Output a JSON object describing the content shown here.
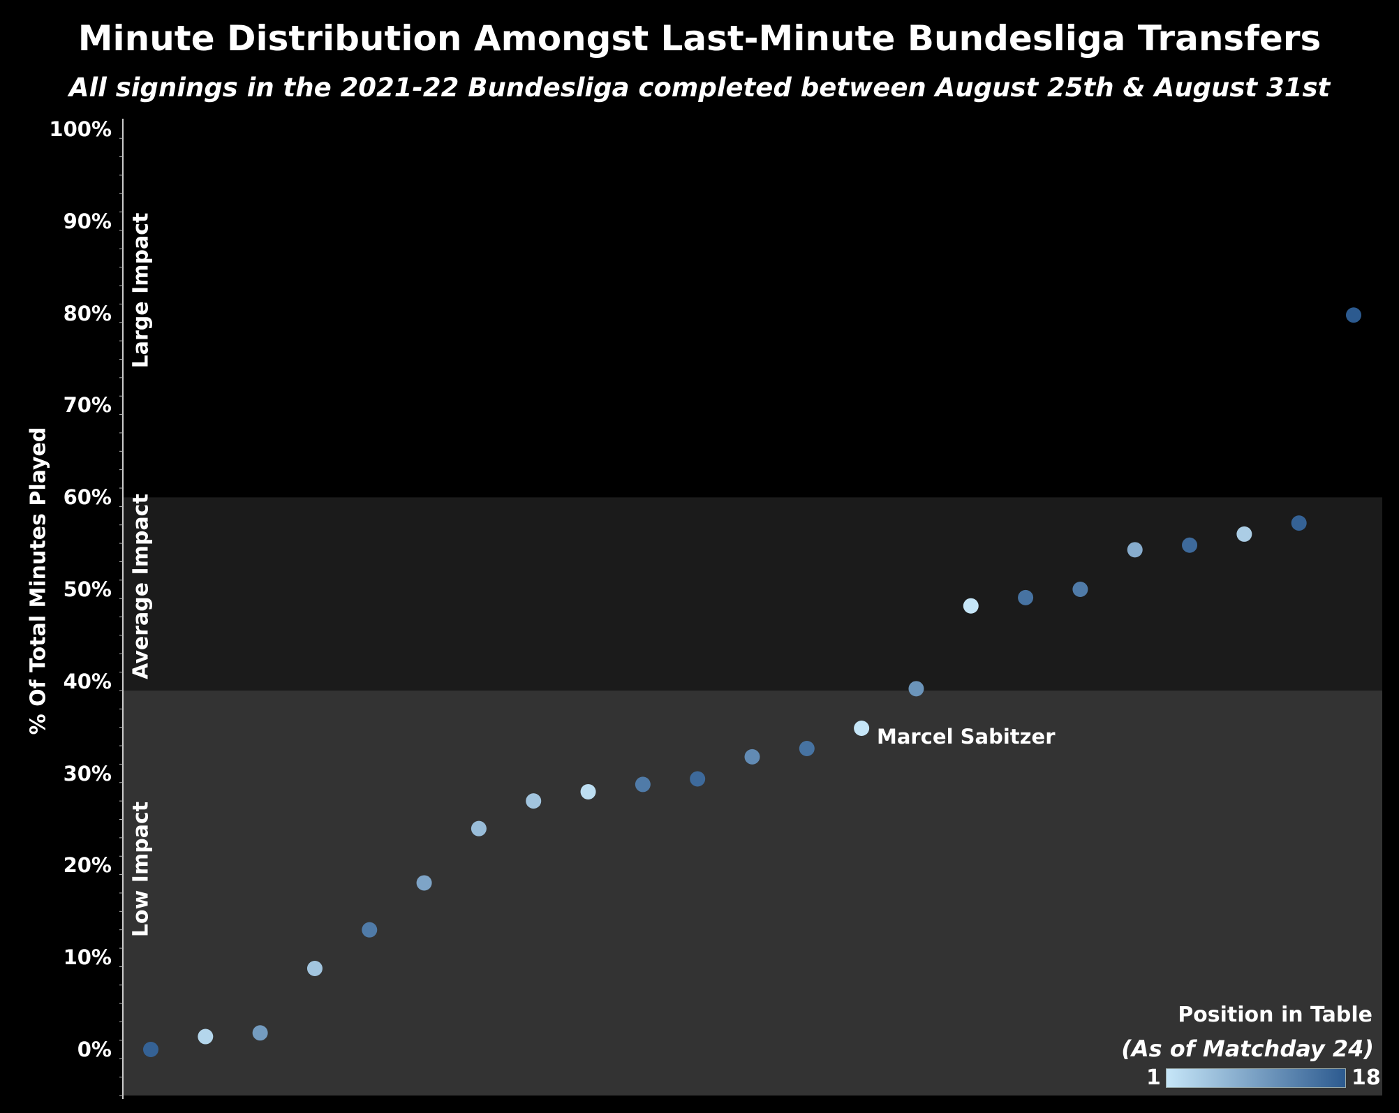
{
  "title": "Minute Distribution Amongst Last-Minute Bundesliga Transfers",
  "subtitle": "All signings in the 2021-22 Bundesliga completed between August 25th & August 31st",
  "chart_data": {
    "type": "scatter",
    "ylabel": "% Of Total Minutes Played",
    "ylim": [
      -5,
      100
    ],
    "y_ticks": [
      "0%",
      "10%",
      "20%",
      "30%",
      "40%",
      "50%",
      "60%",
      "70%",
      "80%",
      "90%",
      "100%"
    ],
    "bands": [
      {
        "label": "Low Impact",
        "from": -5,
        "to": 39,
        "color": "#333333"
      },
      {
        "label": "Average Impact",
        "from": 39,
        "to": 60,
        "color": "#1b1b1b"
      },
      {
        "label": "Large Impact",
        "from": 60,
        "to": 100,
        "color": "#000000"
      }
    ],
    "points": [
      {
        "y": 0.0,
        "position": 17
      },
      {
        "y": 1.4,
        "position": 3
      },
      {
        "y": 1.8,
        "position": 10
      },
      {
        "y": 8.8,
        "position": 5
      },
      {
        "y": 13.0,
        "position": 14
      },
      {
        "y": 18.1,
        "position": 9
      },
      {
        "y": 24.0,
        "position": 6
      },
      {
        "y": 27.0,
        "position": 5
      },
      {
        "y": 28.0,
        "position": 2
      },
      {
        "y": 28.8,
        "position": 14
      },
      {
        "y": 29.4,
        "position": 16
      },
      {
        "y": 31.8,
        "position": 12
      },
      {
        "y": 32.7,
        "position": 15
      },
      {
        "y": 34.9,
        "position": 1,
        "label": "Marcel Sabitzer"
      },
      {
        "y": 39.2,
        "position": 11
      },
      {
        "y": 48.2,
        "position": 1
      },
      {
        "y": 49.1,
        "position": 15
      },
      {
        "y": 50.0,
        "position": 14
      },
      {
        "y": 54.3,
        "position": 8
      },
      {
        "y": 54.8,
        "position": 16
      },
      {
        "y": 56.0,
        "position": 4
      },
      {
        "y": 57.2,
        "position": 17
      },
      {
        "y": 79.8,
        "position": 18
      }
    ],
    "legend": {
      "title": "Position in Table",
      "subtitle": "(As of Matchday 24)",
      "min": "1",
      "max": "18",
      "color_min": "#c6e6f8",
      "color_max": "#2c5a8f"
    }
  }
}
